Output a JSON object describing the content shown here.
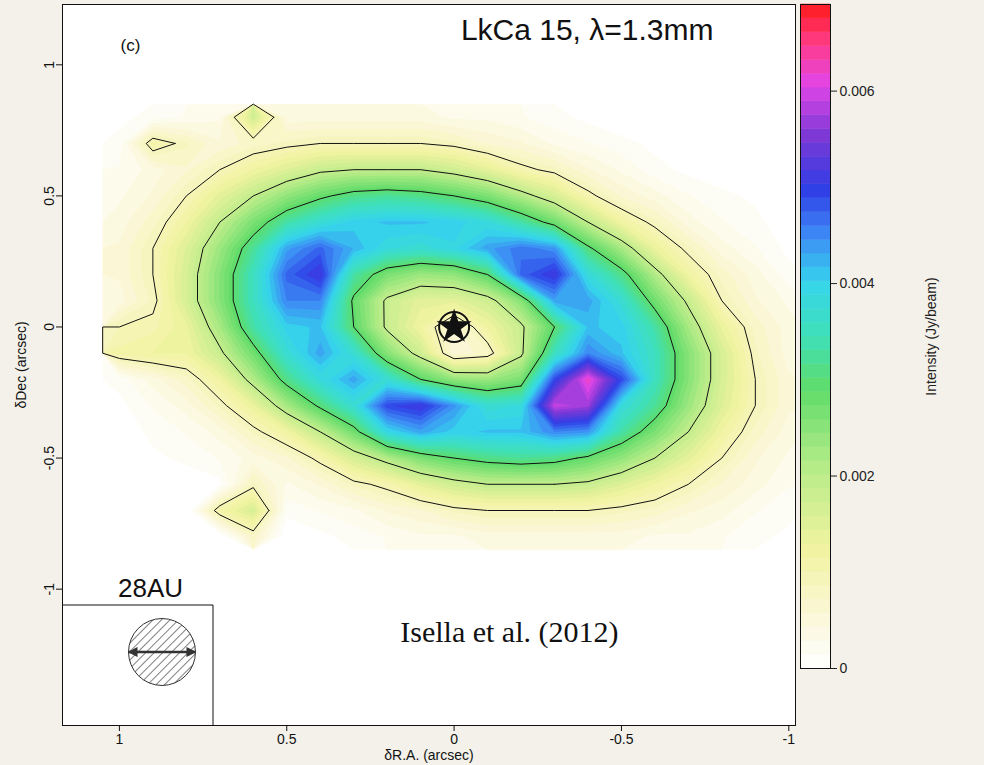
{
  "chart_data": {
    "type": "heatmap",
    "title": "LkCa 15, λ=1.3mm",
    "panel_label": "(c)",
    "citation": "Isella et al. (2012)",
    "x_label": "δR.A. (arcsec)",
    "y_label": "δDec (arcsec)",
    "xlim": [
      1.17,
      -1.02
    ],
    "ylim": [
      -1.52,
      1.23
    ],
    "xticks": [
      1,
      0.5,
      0,
      -0.5,
      -1
    ],
    "yticks": [
      -1,
      -0.5,
      0,
      0.5,
      1
    ],
    "x": [
      1.0,
      0.9,
      0.8,
      0.7,
      0.6,
      0.5,
      0.4,
      0.3,
      0.2,
      0.1,
      0,
      -0.1,
      -0.2,
      -0.3,
      -0.4,
      -0.5,
      -0.6,
      -0.7,
      -0.8,
      -0.9,
      -1.0
    ],
    "y": [
      0.8,
      0.7,
      0.6,
      0.5,
      0.4,
      0.3,
      0.2,
      0.1,
      0,
      -0.1,
      -0.2,
      -0.3,
      -0.4,
      -0.5,
      -0.6,
      -0.7,
      -0.8
    ],
    "values": [
      [
        0.0001,
        0.0002,
        0.0003,
        0.0004,
        0.0018,
        0.0005,
        0.0005,
        0.0005,
        0.0005,
        0.0005,
        0.0004,
        0.0004,
        0.0003,
        0.0002,
        0.0001,
        0,
        0,
        0,
        0,
        0,
        0
      ],
      [
        0.0002,
        0.0012,
        0.0009,
        0.0006,
        0.0008,
        0.0009,
        0.001,
        0.001,
        0.001,
        0.001,
        0.0009,
        0.0007,
        0.0006,
        0.0004,
        0.0003,
        0.0002,
        0.0001,
        0,
        0,
        0,
        0
      ],
      [
        0.0003,
        0.0005,
        0.0007,
        0.001,
        0.0013,
        0.0016,
        0.0019,
        0.002,
        0.002,
        0.002,
        0.0018,
        0.0015,
        0.0011,
        0.0009,
        0.0006,
        0.0004,
        0.0002,
        0.0001,
        0,
        0,
        0
      ],
      [
        0.0004,
        0.0006,
        0.001,
        0.0015,
        0.002,
        0.0025,
        0.0029,
        0.0032,
        0.0033,
        0.0032,
        0.003,
        0.0027,
        0.0022,
        0.0017,
        0.0011,
        0.0007,
        0.0005,
        0.0003,
        0.0002,
        0.0001,
        0
      ],
      [
        0.0005,
        0.0008,
        0.0013,
        0.002,
        0.0027,
        0.0034,
        0.0038,
        0.0041,
        0.0042,
        0.0042,
        0.0041,
        0.0039,
        0.0034,
        0.0028,
        0.002,
        0.0013,
        0.0009,
        0.0005,
        0.0003,
        0.0002,
        0
      ],
      [
        0.0006,
        0.001,
        0.0016,
        0.0024,
        0.0033,
        0.0044,
        0.0048,
        0.0043,
        0.0039,
        0.0038,
        0.004,
        0.0044,
        0.0047,
        0.0045,
        0.0031,
        0.0023,
        0.0014,
        0.0009,
        0.0005,
        0.0003,
        0.0001
      ],
      [
        0.0006,
        0.001,
        0.0017,
        0.0026,
        0.0036,
        0.0048,
        0.0052,
        0.0034,
        0.0027,
        0.0024,
        0.0025,
        0.003,
        0.0048,
        0.0052,
        0.0039,
        0.0032,
        0.0022,
        0.0013,
        0.0008,
        0.0005,
        0.0002
      ],
      [
        0.0005,
        0.0009,
        0.0017,
        0.0026,
        0.0036,
        0.0046,
        0.0046,
        0.0029,
        0.0019,
        0.0015,
        0.0015,
        0.0018,
        0.0026,
        0.0044,
        0.0044,
        0.0038,
        0.0028,
        0.0019,
        0.001,
        0.0006,
        0.0004
      ],
      [
        0.001,
        0.0011,
        0.0014,
        0.0023,
        0.0034,
        0.0041,
        0.0042,
        0.003,
        0.0019,
        0.0013,
        0.0006,
        0.0013,
        0.0019,
        0.003,
        0.0042,
        0.0041,
        0.0034,
        0.0023,
        0.0014,
        0.0008,
        0.0005
      ],
      [
        0.0012,
        0.0013,
        0.0013,
        0.0019,
        0.0028,
        0.0038,
        0.0044,
        0.0038,
        0.0026,
        0.0018,
        0.0006,
        0.0008,
        0.0019,
        0.0036,
        0.0046,
        0.0042,
        0.0036,
        0.0026,
        0.0017,
        0.0009,
        0.0005
      ],
      [
        0.0002,
        0.0005,
        0.0008,
        0.0013,
        0.0022,
        0.0032,
        0.0039,
        0.0044,
        0.0038,
        0.003,
        0.0025,
        0.0024,
        0.0027,
        0.005,
        0.0063,
        0.005,
        0.0036,
        0.0026,
        0.0017,
        0.001,
        0.0006
      ],
      [
        0.0001,
        0.0003,
        0.0005,
        0.0009,
        0.0014,
        0.0023,
        0.0031,
        0.0038,
        0.005,
        0.0052,
        0.0045,
        0.0038,
        0.0039,
        0.006,
        0.0058,
        0.0039,
        0.0033,
        0.0024,
        0.0016,
        0.001,
        0.0006
      ],
      [
        0,
        0.0002,
        0.0003,
        0.0005,
        0.0009,
        0.0013,
        0.002,
        0.0028,
        0.004,
        0.0044,
        0.0041,
        0.0042,
        0.0042,
        0.0046,
        0.0045,
        0.0034,
        0.0027,
        0.002,
        0.0013,
        0.0008,
        0.0005
      ],
      [
        0,
        0.0001,
        0.0002,
        0.0003,
        0.0005,
        0.0007,
        0.0011,
        0.0017,
        0.0022,
        0.0027,
        0.003,
        0.0032,
        0.0033,
        0.0032,
        0.0029,
        0.0025,
        0.002,
        0.0015,
        0.001,
        0.0006,
        0.0004
      ],
      [
        0,
        0,
        0,
        0.0001,
        0.0009,
        0.0004,
        0.0006,
        0.0009,
        0.0011,
        0.0015,
        0.0018,
        0.002,
        0.002,
        0.002,
        0.0019,
        0.0016,
        0.0013,
        0.001,
        0.0007,
        0.0005,
        0.0003
      ],
      [
        0,
        0,
        0,
        0.0012,
        0.0017,
        0.0002,
        0.0003,
        0.0004,
        0.0006,
        0.0007,
        0.0009,
        0.001,
        0.001,
        0.001,
        0.001,
        0.0009,
        0.0008,
        0.0006,
        0.0005,
        0.0003,
        0.0002
      ],
      [
        0,
        0,
        0,
        0,
        0.0008,
        0,
        0.0001,
        0.0002,
        0.0003,
        0.0004,
        0.0004,
        0.0005,
        0.0005,
        0.0005,
        0.0005,
        0.0005,
        0.0004,
        0.0004,
        0.0003,
        0.0002,
        0.0001
      ]
    ],
    "contour_levels": [
      0.001,
      0.002,
      0.003
    ],
    "colorbar": {
      "range": [
        0,
        0.0069
      ],
      "ticks": [
        0,
        0.002,
        0.004,
        0.006
      ],
      "label": "Intensity (Jy/beam)"
    },
    "star": [
      0,
      0
    ],
    "beam": {
      "label": "28AU",
      "diameter": 0.2
    }
  }
}
